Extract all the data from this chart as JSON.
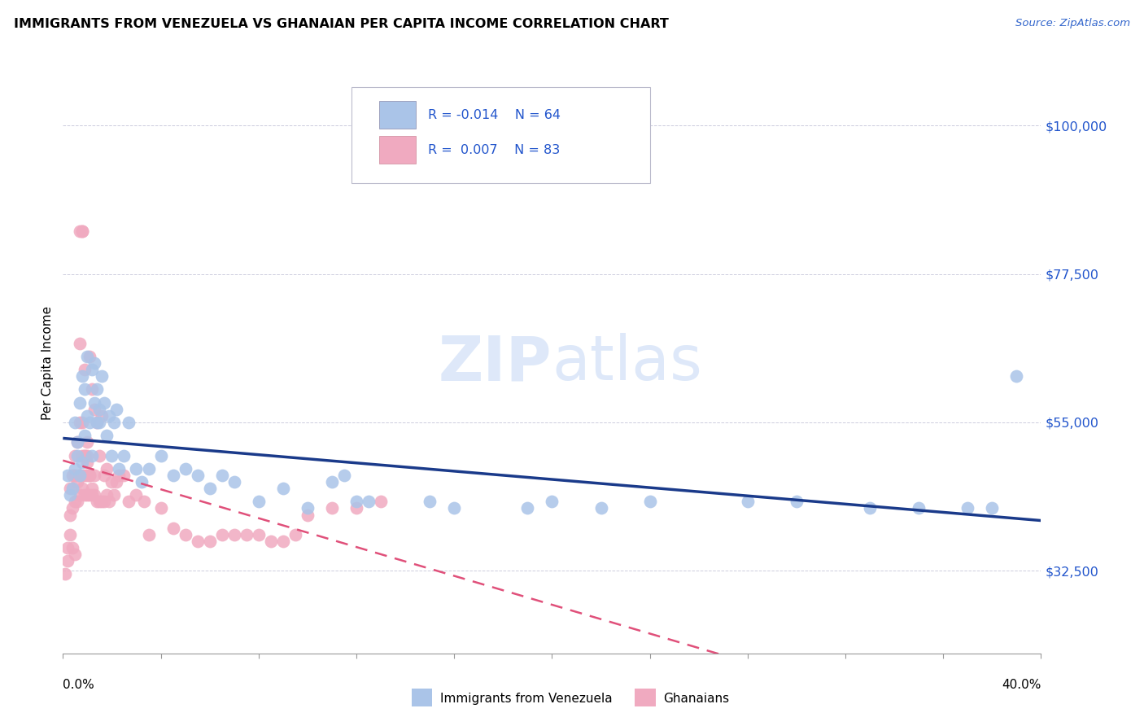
{
  "title": "IMMIGRANTS FROM VENEZUELA VS GHANAIAN PER CAPITA INCOME CORRELATION CHART",
  "source": "Source: ZipAtlas.com",
  "ylabel": "Per Capita Income",
  "yticks": [
    32500,
    55000,
    77500,
    100000
  ],
  "ytick_labels": [
    "$32,500",
    "$55,000",
    "$77,500",
    "$100,000"
  ],
  "xlim": [
    0.0,
    0.4
  ],
  "ylim": [
    20000,
    108000
  ],
  "blue_color": "#aac4e8",
  "pink_color": "#f0aac0",
  "blue_line_color": "#1a3a8a",
  "pink_line_color": "#e0507a",
  "watermark_color": "#c8daf5",
  "blue_scatter_x": [
    0.002,
    0.003,
    0.004,
    0.005,
    0.005,
    0.006,
    0.006,
    0.007,
    0.007,
    0.008,
    0.008,
    0.009,
    0.009,
    0.01,
    0.01,
    0.011,
    0.012,
    0.012,
    0.013,
    0.013,
    0.014,
    0.014,
    0.015,
    0.015,
    0.016,
    0.017,
    0.018,
    0.019,
    0.02,
    0.021,
    0.022,
    0.023,
    0.025,
    0.027,
    0.03,
    0.032,
    0.035,
    0.04,
    0.045,
    0.05,
    0.055,
    0.06,
    0.065,
    0.07,
    0.08,
    0.09,
    0.1,
    0.11,
    0.115,
    0.12,
    0.125,
    0.15,
    0.16,
    0.19,
    0.2,
    0.22,
    0.24,
    0.28,
    0.3,
    0.33,
    0.35,
    0.37,
    0.38,
    0.39
  ],
  "blue_scatter_y": [
    47000,
    44000,
    45000,
    48000,
    55000,
    50000,
    52000,
    47000,
    58000,
    49000,
    62000,
    53000,
    60000,
    56000,
    65000,
    55000,
    50000,
    63000,
    58000,
    64000,
    55000,
    60000,
    57000,
    55000,
    62000,
    58000,
    53000,
    56000,
    50000,
    55000,
    57000,
    48000,
    50000,
    55000,
    48000,
    46000,
    48000,
    50000,
    47000,
    48000,
    47000,
    45000,
    47000,
    46000,
    43000,
    45000,
    42000,
    46000,
    47000,
    43000,
    43000,
    43000,
    42000,
    42000,
    43000,
    42000,
    43000,
    43000,
    43000,
    42000,
    42000,
    42000,
    42000,
    62000
  ],
  "pink_scatter_x": [
    0.001,
    0.002,
    0.002,
    0.003,
    0.003,
    0.003,
    0.004,
    0.004,
    0.004,
    0.005,
    0.005,
    0.005,
    0.005,
    0.006,
    0.006,
    0.006,
    0.007,
    0.007,
    0.007,
    0.007,
    0.008,
    0.008,
    0.008,
    0.008,
    0.008,
    0.009,
    0.009,
    0.009,
    0.009,
    0.01,
    0.01,
    0.01,
    0.01,
    0.011,
    0.011,
    0.011,
    0.012,
    0.012,
    0.013,
    0.013,
    0.013,
    0.014,
    0.014,
    0.015,
    0.015,
    0.016,
    0.016,
    0.017,
    0.017,
    0.018,
    0.018,
    0.019,
    0.02,
    0.021,
    0.022,
    0.023,
    0.025,
    0.027,
    0.03,
    0.033,
    0.035,
    0.04,
    0.045,
    0.05,
    0.055,
    0.06,
    0.065,
    0.07,
    0.075,
    0.08,
    0.085,
    0.09,
    0.095,
    0.1,
    0.11,
    0.12,
    0.13,
    0.007,
    0.008,
    0.009,
    0.01,
    0.011,
    0.012
  ],
  "pink_scatter_y": [
    32000,
    34000,
    36000,
    38000,
    41000,
    45000,
    36000,
    42000,
    47000,
    35000,
    43000,
    47000,
    50000,
    43000,
    46000,
    52000,
    44000,
    47000,
    55000,
    67000,
    45000,
    47000,
    50000,
    55000,
    84000,
    44000,
    47000,
    50000,
    63000,
    44000,
    47000,
    50000,
    52000,
    44000,
    47000,
    65000,
    44000,
    60000,
    44000,
    47000,
    57000,
    43000,
    55000,
    43000,
    50000,
    43000,
    56000,
    43000,
    47000,
    44000,
    48000,
    43000,
    46000,
    44000,
    46000,
    47000,
    47000,
    43000,
    44000,
    43000,
    38000,
    42000,
    39000,
    38000,
    37000,
    37000,
    38000,
    38000,
    38000,
    38000,
    37000,
    37000,
    38000,
    41000,
    42000,
    42000,
    43000,
    84000,
    84000,
    50000,
    49000,
    47000,
    45000
  ]
}
